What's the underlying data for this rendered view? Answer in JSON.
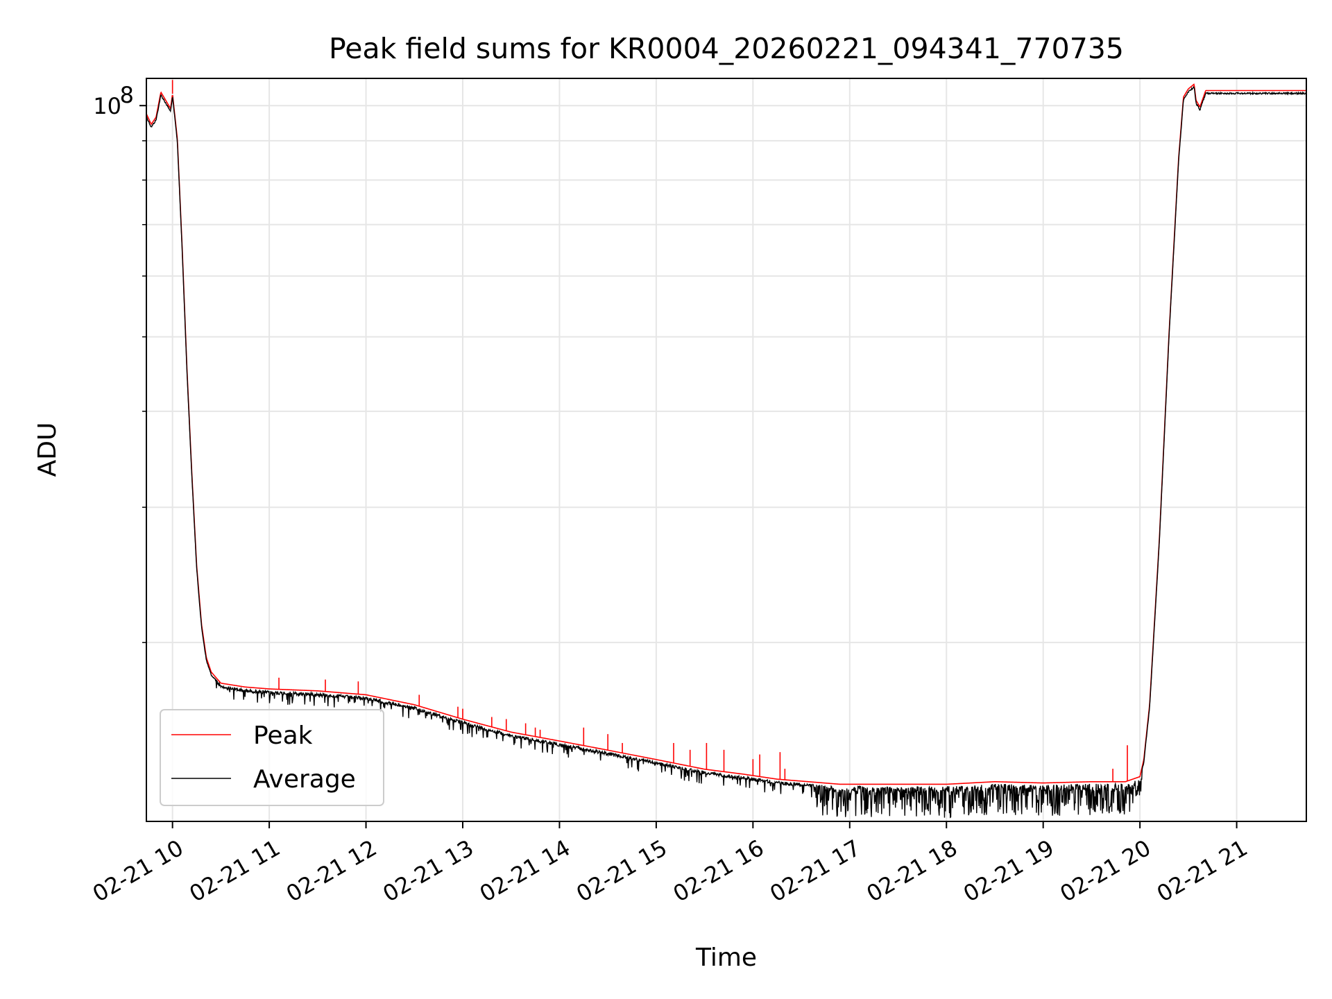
{
  "chart_data": {
    "type": "line",
    "title": "Peak field sums for KR0004_20260221_094341_770735",
    "xlabel": "Time",
    "ylabel": "ADU",
    "yscale": "log",
    "xlim": [
      9.73,
      21.72
    ],
    "ylim": [
      11700000,
      108500000
    ],
    "x_ticks": [
      10,
      11,
      12,
      13,
      14,
      15,
      16,
      17,
      18,
      19,
      20,
      21
    ],
    "x_tick_labels": [
      "02-21 10",
      "02-21 11",
      "02-21 12",
      "02-21 13",
      "02-21 14",
      "02-21 15",
      "02-21 16",
      "02-21 17",
      "02-21 18",
      "02-21 19",
      "02-21 20",
      "02-21 21"
    ],
    "y_major_ticks": [
      100000000
    ],
    "y_major_tick_labels": [
      "10",
      "8"
    ],
    "y_minor_ticks": [
      20000000,
      30000000,
      40000000,
      50000000,
      60000000,
      70000000,
      80000000,
      90000000
    ],
    "grid": true,
    "legend_position": "lower-left",
    "legend": [
      "Peak",
      "Average"
    ],
    "series": [
      {
        "name": "Average",
        "color": "#000000",
        "noise_level": 0.01,
        "points": [
          [
            9.73,
            97000000
          ],
          [
            9.78,
            94000000
          ],
          [
            9.83,
            96000000
          ],
          [
            9.88,
            103500000
          ],
          [
            9.93,
            101000000
          ],
          [
            9.98,
            98500000
          ],
          [
            10.0,
            103000000
          ],
          [
            10.05,
            90000000
          ],
          [
            10.1,
            65000000
          ],
          [
            10.15,
            45000000
          ],
          [
            10.2,
            33000000
          ],
          [
            10.25,
            25000000
          ],
          [
            10.3,
            21000000
          ],
          [
            10.35,
            19000000
          ],
          [
            10.4,
            18200000
          ],
          [
            10.5,
            17600000
          ],
          [
            10.75,
            17400000
          ],
          [
            11.0,
            17300000
          ],
          [
            11.5,
            17200000
          ],
          [
            12.0,
            17000000
          ],
          [
            12.5,
            16500000
          ],
          [
            13.0,
            15800000
          ],
          [
            13.5,
            15200000
          ],
          [
            14.0,
            14800000
          ],
          [
            14.5,
            14400000
          ],
          [
            15.0,
            14000000
          ],
          [
            15.5,
            13600000
          ],
          [
            15.9,
            13400000
          ],
          [
            16.25,
            13200000
          ],
          [
            16.9,
            13000000
          ],
          [
            17.5,
            13000000
          ],
          [
            18.0,
            13000000
          ],
          [
            18.5,
            13100000
          ],
          [
            19.0,
            13050000
          ],
          [
            19.5,
            13100000
          ],
          [
            19.85,
            13100000
          ],
          [
            20.0,
            13300000
          ],
          [
            20.04,
            14000000
          ],
          [
            20.1,
            16500000
          ],
          [
            20.2,
            27000000
          ],
          [
            20.3,
            50000000
          ],
          [
            20.4,
            85000000
          ],
          [
            20.45,
            102000000
          ],
          [
            20.5,
            104500000
          ],
          [
            20.56,
            106000000
          ],
          [
            20.58,
            101000000
          ],
          [
            20.62,
            99000000
          ],
          [
            20.68,
            104000000
          ],
          [
            20.72,
            104000000
          ]
        ]
      },
      {
        "name": "Peak",
        "color": "#ff0000",
        "offset_factor": 1.006,
        "spikes": [
          [
            10.0,
            108000000
          ],
          [
            11.1,
            18000000
          ],
          [
            11.58,
            17900000
          ],
          [
            11.92,
            17800000
          ],
          [
            12.55,
            17100000
          ],
          [
            12.95,
            16500000
          ],
          [
            13.0,
            16400000
          ],
          [
            13.3,
            16000000
          ],
          [
            13.45,
            15900000
          ],
          [
            13.65,
            15700000
          ],
          [
            13.75,
            15500000
          ],
          [
            13.8,
            15400000
          ],
          [
            14.25,
            15500000
          ],
          [
            14.5,
            15200000
          ],
          [
            14.65,
            14800000
          ],
          [
            15.18,
            14800000
          ],
          [
            15.35,
            14500000
          ],
          [
            15.52,
            14800000
          ],
          [
            15.7,
            14500000
          ],
          [
            16.0,
            14100000
          ],
          [
            16.07,
            14300000
          ],
          [
            16.28,
            14400000
          ],
          [
            16.33,
            13700000
          ],
          [
            19.72,
            13700000
          ],
          [
            19.87,
            14700000
          ]
        ]
      }
    ]
  }
}
